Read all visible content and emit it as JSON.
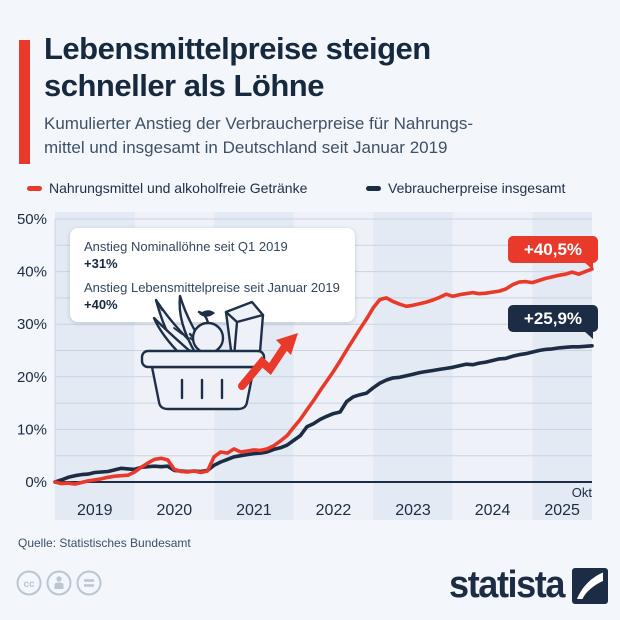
{
  "header": {
    "title_lines": [
      "Lebensmittelpreise steigen",
      "schneller als Löhne"
    ],
    "subtitle_lines": [
      "Kumulierter Anstieg der Verbraucherpreise für Nahrungs-",
      "mittel und insgesamt in Deutschland seit Januar 2019"
    ]
  },
  "legend": [
    {
      "label": "Nahrungsmittel und alkoholfreie Getränke",
      "color": "#e8392a"
    },
    {
      "label": "Vebraucherpreise insgesamt",
      "color": "#1b2c44"
    }
  ],
  "annotation": {
    "line1_label": "Anstieg Nominallöhne seit Q1 2019",
    "line1_value": "+31%",
    "line2_label": "Anstieg Lebensmittelpreise seit Januar 2019",
    "line2_value": "+40%"
  },
  "colors": {
    "red": "#e8392a",
    "navy": "#1b2c44",
    "grid": "#c9d4e1",
    "band_dark": "#e4eaf4",
    "band_light": "#eef2f8",
    "background": "#f3f6fa"
  },
  "footer": {
    "source": "Quelle: Statistisches Bundesamt",
    "brand": "statista",
    "license_icons": [
      "cc",
      "attribution",
      "equal"
    ]
  },
  "chart_data": {
    "type": "line",
    "title": "Lebensmittelpreise steigen schneller als Löhne",
    "x_unit": "month",
    "x_start": "2019-01",
    "x_end": "2025-10",
    "x_tick_labels": [
      "2019",
      "2020",
      "2021",
      "2022",
      "2023",
      "2024",
      "2025"
    ],
    "x_end_point_label": "Okt",
    "y_tick_labels": [
      "0%",
      "10%",
      "20%",
      "30%",
      "40%",
      "50%"
    ],
    "ylim": [
      0,
      50
    ],
    "grid_step_pct": 5,
    "series": [
      {
        "name": "Nahrungsmittel und alkoholfreie Getränke",
        "color": "#e8392a",
        "end_label": "+40,5%",
        "end_value": 40.5,
        "values": [
          0.0,
          -0.3,
          -0.2,
          -0.4,
          -0.1,
          0.2,
          0.4,
          0.6,
          0.9,
          1.1,
          1.2,
          1.3,
          1.9,
          2.8,
          3.6,
          4.3,
          4.5,
          4.2,
          2.4,
          2.0,
          1.9,
          2.1,
          1.8,
          2.1,
          4.8,
          5.7,
          5.5,
          6.3,
          5.7,
          5.9,
          6.1,
          6.0,
          6.3,
          6.9,
          7.8,
          8.8,
          10.4,
          11.9,
          13.7,
          15.5,
          17.4,
          19.2,
          21.0,
          23.0,
          25.1,
          27.1,
          29.1,
          31.0,
          33.1,
          34.7,
          35.0,
          34.3,
          33.8,
          33.4,
          33.6,
          33.9,
          34.2,
          34.6,
          35.1,
          35.7,
          35.3,
          35.6,
          35.8,
          36.0,
          35.8,
          35.9,
          36.1,
          36.3,
          36.7,
          37.5,
          38.0,
          38.1,
          37.9,
          38.3,
          38.7,
          39.0,
          39.3,
          39.5,
          39.9,
          39.5,
          40.0,
          40.5
        ]
      },
      {
        "name": "Vebraucherpreise insgesamt",
        "color": "#1b2c44",
        "end_label": "+25,9%",
        "end_value": 25.9,
        "values": [
          0.0,
          0.4,
          0.9,
          1.2,
          1.4,
          1.5,
          1.8,
          1.9,
          2.0,
          2.3,
          2.6,
          2.5,
          2.4,
          2.8,
          2.9,
          3.0,
          2.9,
          3.0,
          2.2,
          2.1,
          2.0,
          2.1,
          2.0,
          2.2,
          3.2,
          3.8,
          4.3,
          4.8,
          5.0,
          5.2,
          5.4,
          5.5,
          5.7,
          6.2,
          6.5,
          7.0,
          7.9,
          8.8,
          10.5,
          11.1,
          11.9,
          12.5,
          13.0,
          13.3,
          15.3,
          16.2,
          16.6,
          16.9,
          17.9,
          18.8,
          19.4,
          19.8,
          19.9,
          20.2,
          20.5,
          20.8,
          21.0,
          21.2,
          21.4,
          21.6,
          21.8,
          22.1,
          22.4,
          22.3,
          22.6,
          22.8,
          23.1,
          23.4,
          23.5,
          23.9,
          24.2,
          24.4,
          24.7,
          25.0,
          25.2,
          25.3,
          25.5,
          25.6,
          25.7,
          25.7,
          25.8,
          25.9
        ]
      }
    ]
  }
}
